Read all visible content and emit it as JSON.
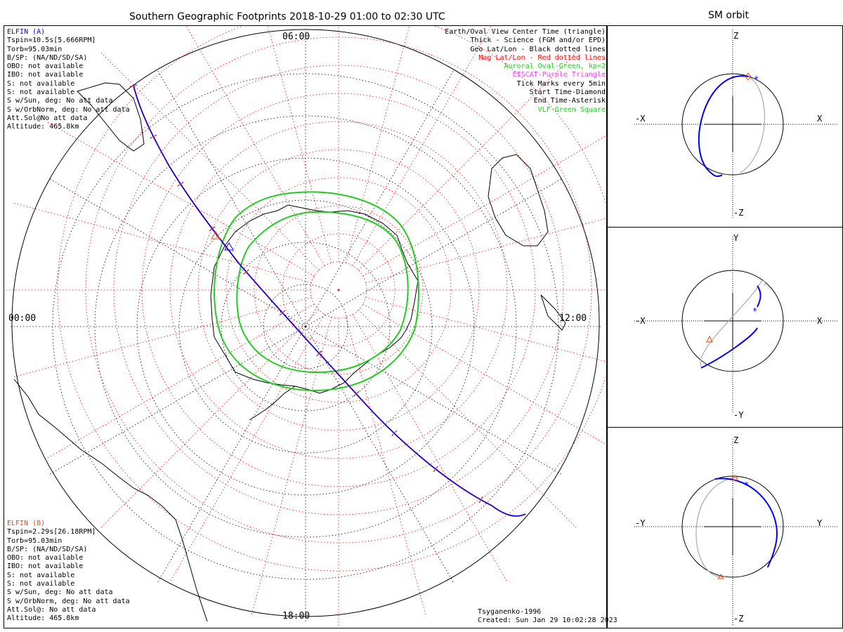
{
  "main_title": "Southern Geographic Footprints 2018-10-29 01:00 to 02:30 UTC",
  "side_title": "SM orbit",
  "clock_labels": {
    "top": "06:00",
    "left": "00:00",
    "right": "12:00",
    "bottom": "18:00"
  },
  "elfin_a": {
    "lines": [
      "ELFIN (A)",
      "Tspin=10.5s[5.666RPM]",
      "Torb=95.03min",
      "B/SP: (NA/ND/SD/SA)",
      "OBO: not available",
      "IBO: not available",
      "S: not available",
      "S: not available",
      "S w/Sun, deg: No att data",
      "S w/OrbNorm, deg: No att data",
      "Att.Sol@No att data",
      "Altitude: 465.8km"
    ],
    "color": "#0000ff"
  },
  "elfin_b": {
    "lines": [
      "ELFIN (B)",
      "Tspin=2.29s[26.18RPM]",
      "Torb=95.03min",
      "B/SP: (NA/ND/SD/SA)",
      "OBO: not available",
      "IBO: not available",
      "S: not available",
      "S: not available",
      "S w/Sun, deg: No att data",
      "S w/OrbNorm, deg: No att data",
      "Att.Sol@: No att data",
      "Altitude: 465.8km"
    ],
    "color": "#ff4500"
  },
  "legend": [
    {
      "text": "Earth/Oval View Center Time (triangle)",
      "color": "#000000"
    },
    {
      "text": "Thick - Science (FGM and/or EPD)",
      "color": "#000000"
    },
    {
      "text": "Geo Lat/Lon - Black dotted lines",
      "color": "#000000"
    },
    {
      "text": "Mag Lat/Lon - Red dotted lines",
      "color": "#ff0000"
    },
    {
      "text": "Auroral Oval-Green, kp=2",
      "color": "#22cc22"
    },
    {
      "text": "EISCAT-Purple Triangle",
      "color": "#ee44ee"
    },
    {
      "text": "Tick Marks every 5min",
      "color": "#000000"
    },
    {
      "text": "Start Time-Diamond",
      "color": "#000000"
    },
    {
      "text": "End Time-Asterisk",
      "color": "#000000"
    },
    {
      "text": "VLF-Green Square",
      "color": "#22cc22"
    }
  ],
  "credits": {
    "model": "Tsyganenko-1996",
    "created": "Created: Sun Jan 29 10:02:28 2023"
  },
  "panels": [
    {
      "top": "Z",
      "bottom": "-Z",
      "left": "-X",
      "right": "X"
    },
    {
      "top": "Y",
      "bottom": "-Y",
      "left": "-X",
      "right": "X"
    },
    {
      "top": "Z",
      "bottom": "-Z",
      "left": "-Y",
      "right": "Y"
    }
  ],
  "colors": {
    "track_a": "#0000ff",
    "track_b": "#ff4500",
    "oval": "#22cc22",
    "geo_grid": "#000000",
    "mag_grid": "#ff0000",
    "orbit_gray": "#aaaaaa"
  }
}
